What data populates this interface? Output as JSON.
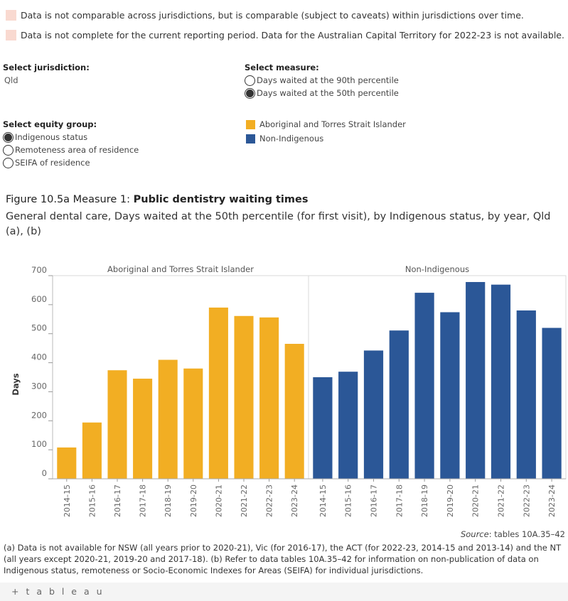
{
  "notes": [
    {
      "text": "Data is not comparable across jurisdictions, but is comparable (subject to caveats) within jurisdictions over time.",
      "color": "#f9d9d0"
    },
    {
      "text": "Data is not complete for the current reporting period. Data for the Australian Capital Territory for 2022-23 is not available.",
      "color": "#f9d9d0"
    }
  ],
  "controls": {
    "jurisdiction": {
      "title": "Select jurisdiction:",
      "value": "Qld"
    },
    "measure": {
      "title": "Select measure:",
      "options": [
        {
          "label": "Days waited at the 90th percentile",
          "selected": false
        },
        {
          "label": "Days waited at the 50th percentile",
          "selected": true
        }
      ]
    },
    "equity": {
      "title": "Select equity group:",
      "options": [
        {
          "label": "Indigenous status",
          "selected": true
        },
        {
          "label": "Remoteness area of residence",
          "selected": false
        },
        {
          "label": "SEIFA of residence",
          "selected": false
        }
      ]
    }
  },
  "legend": [
    {
      "label": "Aboriginal and Torres Strait Islander",
      "color": "#f2ae23"
    },
    {
      "label": "Non-Indigenous",
      "color": "#2b5797"
    }
  ],
  "figure": {
    "title_prefix": "Figure 10.5a Measure 1: ",
    "title_bold": "Public dentistry waiting times",
    "subtitle": "General dental care, Days waited at the 50th percentile (for first visit), by Indigenous status, by year, Qld (a), (b)"
  },
  "chart_data": {
    "type": "bar",
    "ylabel": "Days",
    "ylim": [
      0,
      700
    ],
    "yticks": [
      0,
      100,
      200,
      300,
      400,
      500,
      600,
      700
    ],
    "categories": [
      "2014-15",
      "2015-16",
      "2016-17",
      "2017-18",
      "2018-19",
      "2019-20",
      "2020-21",
      "2021-22",
      "2022-23",
      "2023-24"
    ],
    "series": [
      {
        "name": "Aboriginal and Torres Strait Islander",
        "color": "#f2ae23",
        "values": [
          108,
          194,
          374,
          345,
          410,
          380,
          590,
          561,
          556,
          465
        ]
      },
      {
        "name": "Non-Indigenous",
        "color": "#2b5797",
        "values": [
          350,
          369,
          442,
          511,
          641,
          574,
          678,
          669,
          580,
          520
        ]
      }
    ]
  },
  "source": {
    "label": "Source",
    "text": ": tables 10A.35–42"
  },
  "footnote": "(a) Data is not available for NSW (all years prior to 2020-21), Vic (for 2016-17), the ACT (for 2022-23, 2014-15 and 2013-14) and the NT (all years except 2020-21, 2019-20 and 2017-18). (b) Refer to data tables 10A.35–42 for information on non-publication of data on Indigenous status, remoteness or Socio-Economic Indexes for Areas (SEIFA) for individual jurisdictions.",
  "branding": {
    "text": "+ t a b l e a u"
  }
}
